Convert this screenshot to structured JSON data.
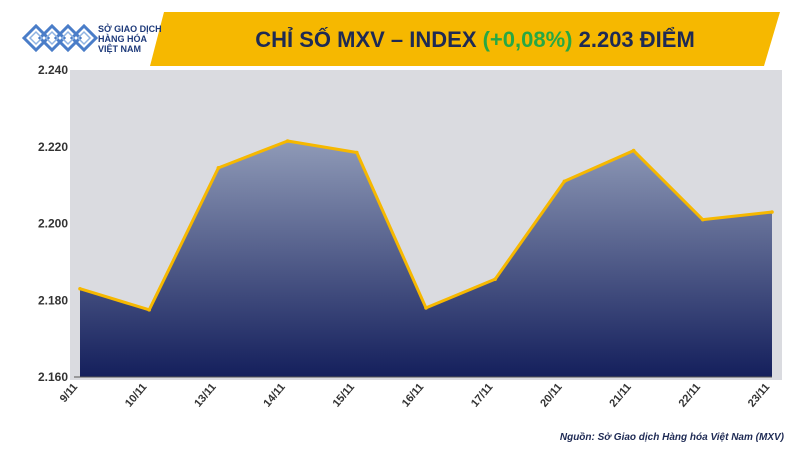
{
  "header": {
    "logo_lines": [
      "SỞ GIAO DỊCH",
      "HÀNG HÓA",
      "VIỆT NAM"
    ],
    "title_prefix": "CHỈ SỐ MXV – INDEX ",
    "title_change": "(+0,08%)",
    "title_suffix": " 2.203 ĐIỂM"
  },
  "source_note": "Nguồn: Sở Giao dịch Hàng hóa Việt Nam (MXV)",
  "colors": {
    "title_band": "#f6b800",
    "title_text": "#1e2a54",
    "change_positive": "#27a844",
    "line": "#f6b800",
    "area_top": "#8f9ab7",
    "area_bottom": "#141f5c",
    "plot_background": "#dadbe0"
  },
  "chart_data": {
    "type": "area",
    "title": "CHỈ SỐ MXV – INDEX (+0,08%) 2.203 ĐIỂM",
    "xlabel": "",
    "ylabel": "",
    "categories": [
      "9/11",
      "10/11",
      "13/11",
      "14/11",
      "15/11",
      "16/11",
      "17/11",
      "20/11",
      "21/11",
      "22/11",
      "23/11"
    ],
    "values": [
      2183,
      2177.5,
      2214.5,
      2221.5,
      2218.5,
      2178,
      2185.5,
      2211,
      2219,
      2201,
      2203
    ],
    "ylim": [
      2160,
      2240
    ],
    "yticks": [
      2160,
      2180,
      2200,
      2220,
      2240
    ],
    "ytick_labels": [
      "2.160",
      "2.180",
      "2.200",
      "2.220",
      "2.240"
    ],
    "grid": false,
    "legend": "none"
  }
}
